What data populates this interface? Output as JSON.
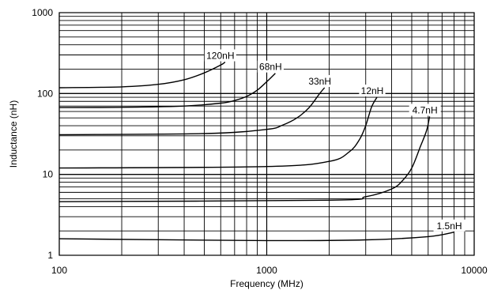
{
  "chart_data": {
    "type": "line",
    "xlabel": "Frequency (MHz)",
    "ylabel": "Inductance (nH)",
    "xscale": "log",
    "yscale": "log",
    "xlim": [
      100,
      10000
    ],
    "ylim": [
      1,
      1000
    ],
    "xticks": [
      "100",
      "1000",
      "10000"
    ],
    "yticks": [
      "1",
      "10",
      "100",
      "1000"
    ],
    "grid": true,
    "series": [
      {
        "name": "120nH",
        "x": [
          100,
          200,
          300,
          400,
          500,
          600,
          630
        ],
        "y": [
          118,
          121,
          130,
          148,
          180,
          225,
          245
        ]
      },
      {
        "name": "68nH",
        "x": [
          100,
          200,
          400,
          600,
          700,
          800,
          900,
          1000,
          1100
        ],
        "y": [
          67,
          67.5,
          70,
          76,
          82,
          92,
          110,
          140,
          178
        ]
      },
      {
        "name": "33nH",
        "x": [
          100,
          500,
          1000,
          1200,
          1400,
          1600,
          1800,
          1900
        ],
        "y": [
          31,
          32,
          36,
          41,
          50,
          67,
          100,
          118
        ]
      },
      {
        "name": "12nH",
        "x": [
          100,
          1000,
          2000,
          2500,
          2800,
          3000,
          3200,
          3400
        ],
        "y": [
          12,
          12.5,
          14.5,
          19,
          27,
          40,
          68,
          90
        ]
      },
      {
        "name": "4.7nH",
        "x": [
          100,
          2000,
          3000,
          4000,
          4500,
          5000,
          5500,
          5900,
          6100
        ],
        "y": [
          4.6,
          4.8,
          5.3,
          6.6,
          8.3,
          12,
          22,
          35,
          52
        ]
      },
      {
        "name": "1.5nH",
        "x": [
          100,
          1000,
          3000,
          6000,
          8000
        ],
        "y": [
          1.6,
          1.52,
          1.55,
          1.7,
          1.93
        ]
      }
    ]
  }
}
